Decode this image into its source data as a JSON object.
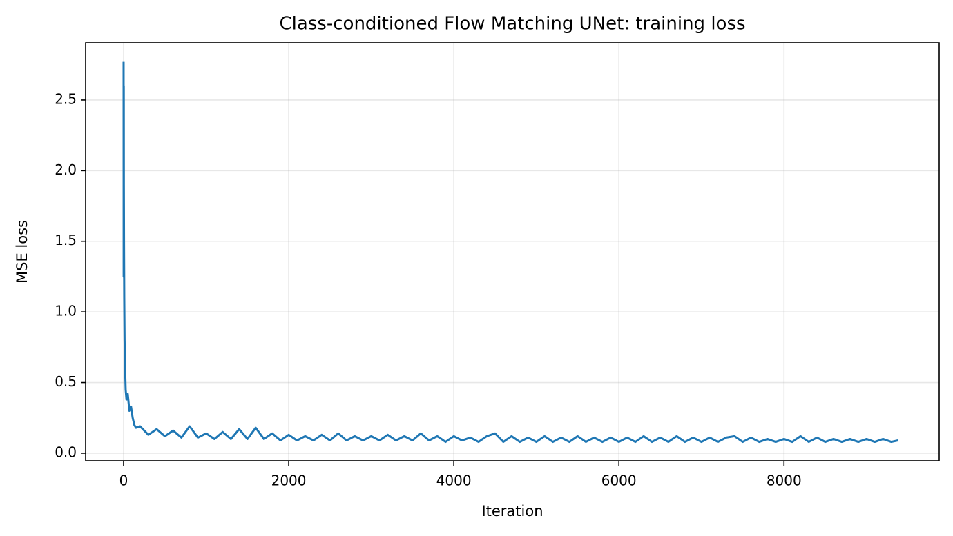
{
  "chart_data": {
    "type": "line",
    "title": "Class-conditioned Flow Matching UNet: training loss",
    "xlabel": "Iteration",
    "ylabel": "MSE loss",
    "color": "#1f77b4",
    "grid": true,
    "xlim": [
      -460,
      9880
    ],
    "ylim": [
      -0.054,
      2.905
    ],
    "xticks": [
      0,
      2000,
      4000,
      6000,
      8000
    ],
    "yticks": [
      {
        "value": 0,
        "label": "0.0"
      },
      0.5,
      {
        "value": 1,
        "label": "1.0"
      },
      1.5,
      {
        "value": 2,
        "label": "2.0"
      },
      2.5
    ],
    "x": [
      0,
      1,
      2,
      3,
      5,
      8,
      12,
      18,
      25,
      35,
      50,
      70,
      90,
      110,
      130,
      150,
      200,
      300,
      400,
      500,
      600,
      700,
      800,
      900,
      1000,
      1100,
      1200,
      1300,
      1400,
      1500,
      1600,
      1700,
      1800,
      1900,
      2000,
      2100,
      2200,
      2300,
      2400,
      2500,
      2600,
      2700,
      2800,
      2900,
      3000,
      3100,
      3200,
      3300,
      3400,
      3500,
      3600,
      3700,
      3800,
      3900,
      4000,
      4100,
      4200,
      4300,
      4400,
      4500,
      4600,
      4700,
      4800,
      4900,
      5000,
      5100,
      5200,
      5300,
      5400,
      5500,
      5600,
      5700,
      5800,
      5900,
      6000,
      6100,
      6200,
      6300,
      6400,
      6500,
      6600,
      6700,
      6800,
      6900,
      7000,
      7100,
      7200,
      7300,
      7400,
      7500,
      7600,
      7700,
      7800,
      7900,
      8000,
      8100,
      8200,
      8300,
      8400,
      8500,
      8600,
      8700,
      8800,
      8900,
      9000,
      9100,
      9200,
      9300,
      9380
    ],
    "values": [
      2.77,
      1.25,
      2.6,
      1.9,
      1.5,
      1.1,
      0.8,
      0.6,
      0.45,
      0.38,
      0.42,
      0.3,
      0.33,
      0.25,
      0.2,
      0.18,
      0.19,
      0.13,
      0.17,
      0.12,
      0.16,
      0.11,
      0.19,
      0.11,
      0.14,
      0.1,
      0.15,
      0.1,
      0.17,
      0.1,
      0.18,
      0.1,
      0.14,
      0.09,
      0.13,
      0.09,
      0.12,
      0.09,
      0.13,
      0.09,
      0.14,
      0.09,
      0.12,
      0.09,
      0.12,
      0.09,
      0.13,
      0.09,
      0.12,
      0.09,
      0.14,
      0.09,
      0.12,
      0.08,
      0.12,
      0.09,
      0.11,
      0.08,
      0.12,
      0.14,
      0.08,
      0.12,
      0.08,
      0.11,
      0.08,
      0.12,
      0.08,
      0.11,
      0.08,
      0.12,
      0.08,
      0.11,
      0.08,
      0.11,
      0.08,
      0.11,
      0.08,
      0.12,
      0.08,
      0.11,
      0.08,
      0.12,
      0.08,
      0.11,
      0.08,
      0.11,
      0.08,
      0.11,
      0.12,
      0.08,
      0.11,
      0.08,
      0.1,
      0.08,
      0.1,
      0.08,
      0.12,
      0.08,
      0.11,
      0.08,
      0.1,
      0.08,
      0.1,
      0.08,
      0.1,
      0.08,
      0.1,
      0.08,
      0.09
    ]
  }
}
